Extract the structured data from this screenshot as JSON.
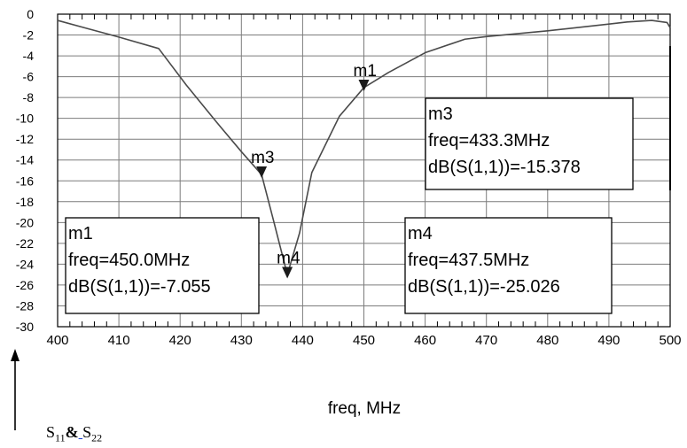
{
  "chart_data": {
    "type": "line",
    "xlabel": "freq, MHz",
    "xlim": [
      400,
      500
    ],
    "ylim": [
      -30,
      0
    ],
    "x_ticks": [
      400,
      410,
      420,
      430,
      440,
      450,
      460,
      470,
      480,
      490,
      500
    ],
    "y_ticks": [
      0,
      -2,
      -4,
      -6,
      -8,
      -10,
      -12,
      -14,
      -16,
      -18,
      -20,
      -22,
      -24,
      -26,
      -28,
      -30
    ],
    "grid": true,
    "series": [
      {
        "color": "#4a4a4a",
        "x": [
          400,
          405,
          410,
          416.5,
          421,
          426,
          430,
          433.3,
          435.2,
          437.5,
          439.5,
          441.5,
          446,
          450,
          454,
          460,
          466.5,
          470,
          480,
          490,
          493,
          497,
          499.5,
          500
        ],
        "y": [
          -0.6,
          -1.4,
          -2.2,
          -3.3,
          -6.8,
          -10.4,
          -13.2,
          -15.4,
          -19.7,
          -25.0,
          -21.0,
          -15.2,
          -9.8,
          -7.05,
          -5.6,
          -3.7,
          -2.4,
          -2.15,
          -1.6,
          -0.95,
          -0.75,
          -0.6,
          -0.8,
          -1.3
        ]
      }
    ],
    "markers": [
      {
        "name": "m1",
        "x": 450.0,
        "y": -7.055
      },
      {
        "name": "m3",
        "x": 433.3,
        "y": -15.378
      },
      {
        "name": "m4",
        "x": 437.5,
        "y": -25.026
      }
    ],
    "marker_boxes": [
      {
        "name": "m3",
        "line1": "freq=433.3MHz",
        "line2": "dB(S(1,1))=-15.378"
      },
      {
        "name": "m1",
        "line1": "freq=450.0MHz",
        "line2": "dB(S(1,1))=-7.055"
      },
      {
        "name": "m4",
        "line1": "freq=437.5MHz",
        "line2": "dB(S(1,1))=-25.026"
      }
    ]
  },
  "caption": {
    "s": "S",
    "sub1": "11",
    "amp": "&",
    "dot": " ",
    "s2": "S",
    "sub2": "22"
  },
  "colors": {
    "grid": "#7c7c7c",
    "axis": "#000000",
    "curve": "#4a4a4a",
    "marker": "#1a1a1a"
  }
}
